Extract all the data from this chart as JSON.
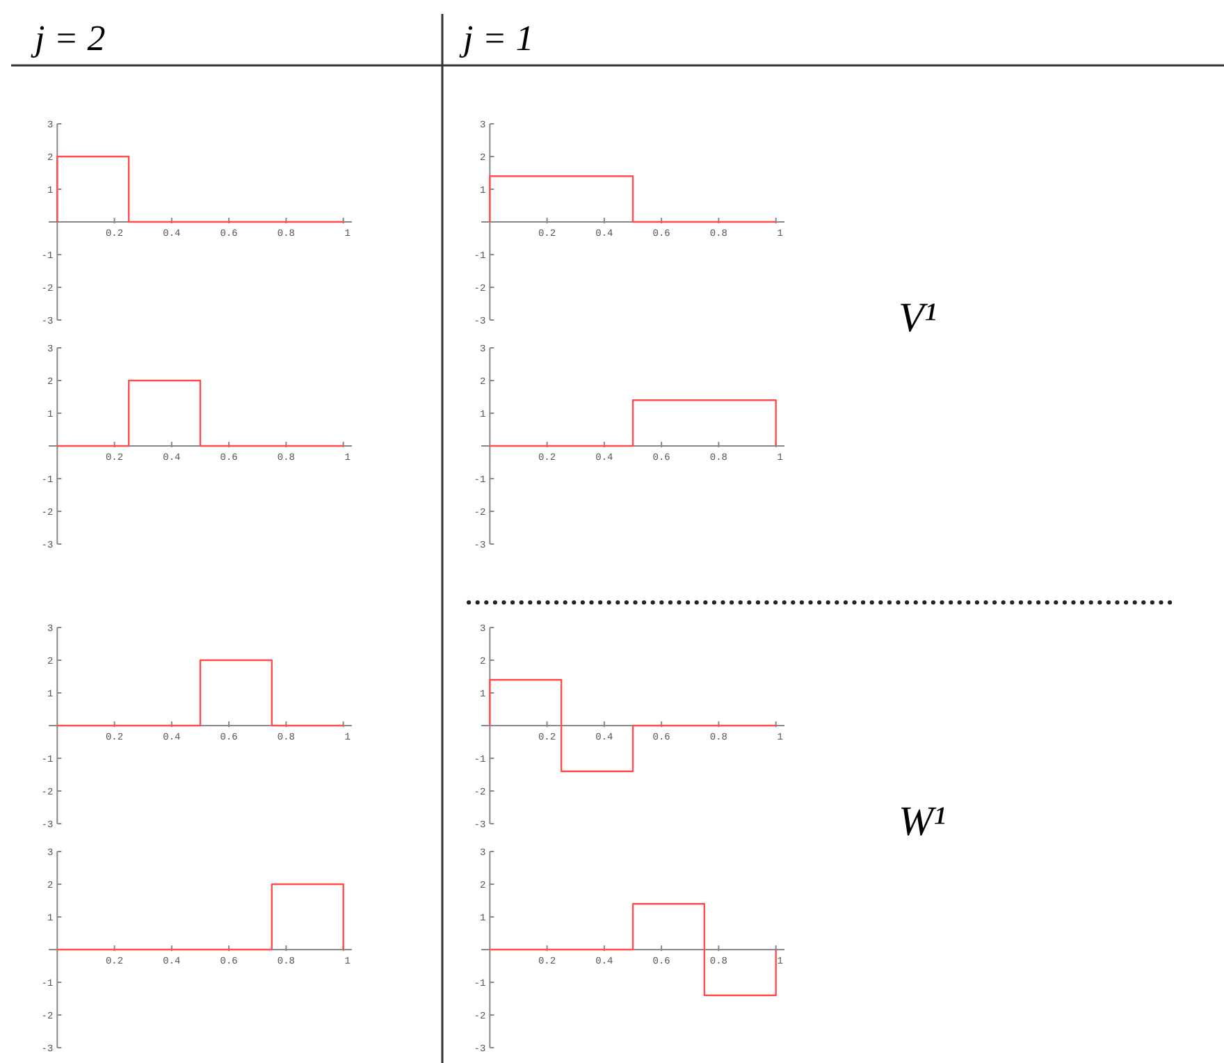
{
  "chart_data": [
    {
      "type": "line",
      "title": "j = 2",
      "x": [
        0,
        0,
        0.25,
        0.25,
        1
      ],
      "series": [
        {
          "color": "#ff4d4d",
          "values": [
            0,
            2,
            2,
            0,
            0
          ]
        }
      ],
      "xlim": [
        -0.03,
        1.03
      ],
      "ylim": [
        -3,
        3
      ],
      "xticks": [
        0.2,
        0.4,
        0.6,
        0.8,
        1
      ],
      "yticks": [
        -3,
        -2,
        -1,
        1,
        2,
        3
      ],
      "line_style": "solid",
      "marker": "none",
      "grid": false
    },
    {
      "type": "line",
      "title": "j = 1",
      "x": [
        0,
        0,
        0.5,
        0.5,
        1
      ],
      "series": [
        {
          "color": "#ff4d4d",
          "values": [
            0,
            1.4,
            1.4,
            0,
            0
          ]
        }
      ],
      "xlim": [
        -0.03,
        1.03
      ],
      "ylim": [
        -3,
        3
      ],
      "xticks": [
        0.2,
        0.4,
        0.6,
        0.8,
        1
      ],
      "yticks": [
        -3,
        -2,
        -1,
        1,
        2,
        3
      ],
      "line_style": "solid",
      "marker": "none",
      "grid": false
    },
    {
      "type": "line",
      "x": [
        0,
        0.25,
        0.25,
        0.5,
        0.5,
        1
      ],
      "series": [
        {
          "color": "#ff4d4d",
          "values": [
            0,
            0,
            2,
            2,
            0,
            0
          ]
        }
      ],
      "xlim": [
        -0.03,
        1.03
      ],
      "ylim": [
        -3,
        3
      ],
      "xticks": [
        0.2,
        0.4,
        0.6,
        0.8,
        1
      ],
      "yticks": [
        -3,
        -2,
        -1,
        1,
        2,
        3
      ],
      "line_style": "solid",
      "marker": "none",
      "grid": false
    },
    {
      "type": "line",
      "annotations": [
        "V¹"
      ],
      "x": [
        0,
        0.5,
        0.5,
        1,
        1
      ],
      "series": [
        {
          "color": "#ff4d4d",
          "values": [
            0,
            0,
            1.4,
            1.4,
            0
          ]
        }
      ],
      "xlim": [
        -0.03,
        1.03
      ],
      "ylim": [
        -3,
        3
      ],
      "xticks": [
        0.2,
        0.4,
        0.6,
        0.8,
        1
      ],
      "yticks": [
        -3,
        -2,
        -1,
        1,
        2,
        3
      ],
      "line_style": "solid",
      "marker": "none",
      "grid": false
    },
    {
      "type": "line",
      "x": [
        0,
        0.5,
        0.5,
        0.75,
        0.75,
        1
      ],
      "series": [
        {
          "color": "#ff4d4d",
          "values": [
            0,
            0,
            2,
            2,
            0,
            0
          ]
        }
      ],
      "xlim": [
        -0.03,
        1.03
      ],
      "ylim": [
        -3,
        3
      ],
      "xticks": [
        0.2,
        0.4,
        0.6,
        0.8,
        1
      ],
      "yticks": [
        -3,
        -2,
        -1,
        1,
        2,
        3
      ],
      "line_style": "solid",
      "marker": "none",
      "grid": false
    },
    {
      "type": "line",
      "x": [
        0,
        0,
        0.25,
        0.25,
        0.5,
        0.5,
        1
      ],
      "series": [
        {
          "color": "#ff4d4d",
          "values": [
            0,
            1.4,
            1.4,
            -1.4,
            -1.4,
            0,
            0
          ]
        }
      ],
      "xlim": [
        -0.03,
        1.03
      ],
      "ylim": [
        -3,
        3
      ],
      "xticks": [
        0.2,
        0.4,
        0.6,
        0.8,
        1
      ],
      "yticks": [
        -3,
        -2,
        -1,
        1,
        2,
        3
      ],
      "line_style": "solid",
      "marker": "none",
      "grid": false
    },
    {
      "type": "line",
      "x": [
        0,
        0.75,
        0.75,
        1,
        1
      ],
      "series": [
        {
          "color": "#ff4d4d",
          "values": [
            0,
            0,
            2,
            2,
            0
          ]
        }
      ],
      "xlim": [
        -0.03,
        1.03
      ],
      "ylim": [
        -3,
        3
      ],
      "xticks": [
        0.2,
        0.4,
        0.6,
        0.8,
        1
      ],
      "yticks": [
        -3,
        -2,
        -1,
        1,
        2,
        3
      ],
      "line_style": "solid",
      "marker": "none",
      "grid": false
    },
    {
      "type": "line",
      "annotations": [
        "W¹"
      ],
      "x": [
        0,
        0.5,
        0.5,
        0.75,
        0.75,
        1,
        1
      ],
      "series": [
        {
          "color": "#ff4d4d",
          "values": [
            0,
            0,
            1.4,
            1.4,
            -1.4,
            -1.4,
            0
          ]
        }
      ],
      "xlim": [
        -0.03,
        1.03
      ],
      "ylim": [
        -3,
        3
      ],
      "xticks": [
        0.2,
        0.4,
        0.6,
        0.8,
        1
      ],
      "yticks": [
        -3,
        -2,
        -1,
        1,
        2,
        3
      ],
      "line_style": "solid",
      "marker": "none",
      "grid": false
    }
  ]
}
